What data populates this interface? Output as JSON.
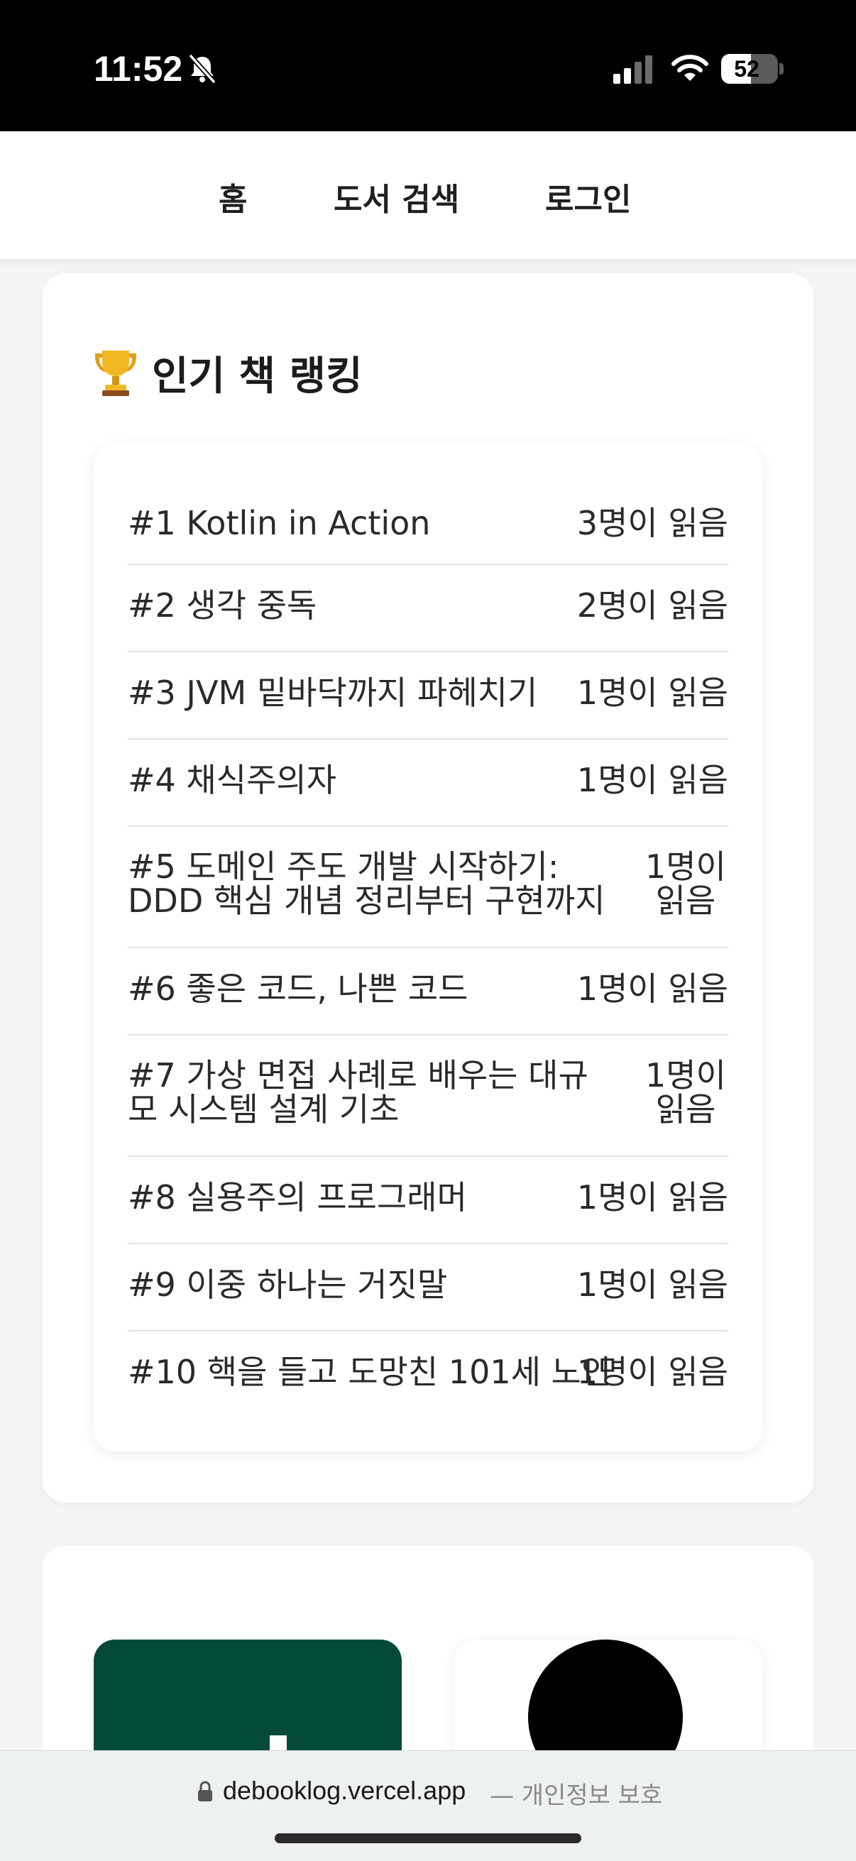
{
  "status_bar": {
    "time": "11:52",
    "battery": "52",
    "battery_level": 0.52,
    "icons": [
      "bell-slash-icon",
      "cellular-signal-icon",
      "wifi-icon",
      "battery-icon"
    ]
  },
  "nav": {
    "home": "홈",
    "book_search": "도서 검색",
    "login": "로그인"
  },
  "ranking": {
    "title": "인기 책 랭킹",
    "icon": "trophy-icon",
    "items": [
      {
        "title": "#1 Kotlin in Action",
        "count": "3명이 읽음"
      },
      {
        "title": "#2 생각 중독",
        "count": "2명이 읽음"
      },
      {
        "title": "#3 JVM 밑바닥까지 파헤치기",
        "count": "1명이 읽음"
      },
      {
        "title": "#4 채식주의자",
        "count": "1명이 읽음"
      },
      {
        "title": "#5 도메인 주도 개발 시작하기: DDD 핵심 개념 정리부터 구현까지",
        "count": "1명이 읽음"
      },
      {
        "title": "#6 좋은 코드, 나쁜 코드",
        "count": "1명이 읽음"
      },
      {
        "title": "#7 가상 면접 사례로 배우는 대규모 시스템 설계 기초",
        "count": "1명이 읽음"
      },
      {
        "title": "#8 실용주의 프로그래머",
        "count": "1명이 읽음"
      },
      {
        "title": "#9 이중 하나는 거짓말",
        "count": "1명이 읽음"
      },
      {
        "title": "#10 핵을 들고 도망친 101세 노인",
        "count": "1명이 읽음"
      }
    ]
  },
  "browser": {
    "url": "debooklog.vercel.app",
    "privacy": "— 개인정보 보호"
  },
  "colors": {
    "thumb_green": "#034a38",
    "background": "#f4f4f5"
  }
}
